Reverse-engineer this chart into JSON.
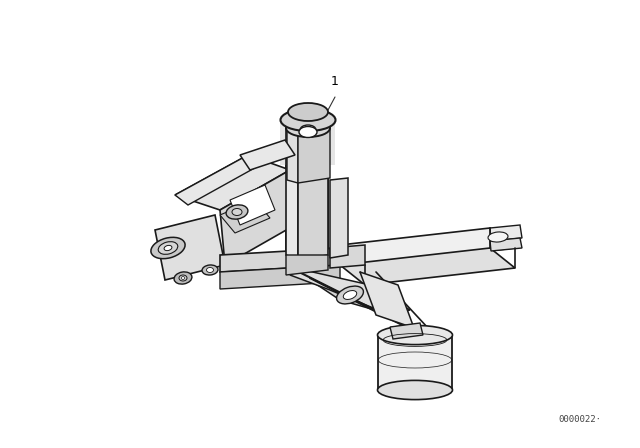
{
  "background_color": "#ffffff",
  "fig_width": 6.4,
  "fig_height": 4.48,
  "dpi": 100,
  "watermark_text": "0000022·",
  "watermark_fontsize": 6.5,
  "watermark_color": "#444444",
  "label_1_text": "1",
  "label_1_fontsize": 9,
  "line_color": "#1a1a1a",
  "line_width": 1.0,
  "image_extent": [
    0,
    640,
    0,
    448
  ]
}
